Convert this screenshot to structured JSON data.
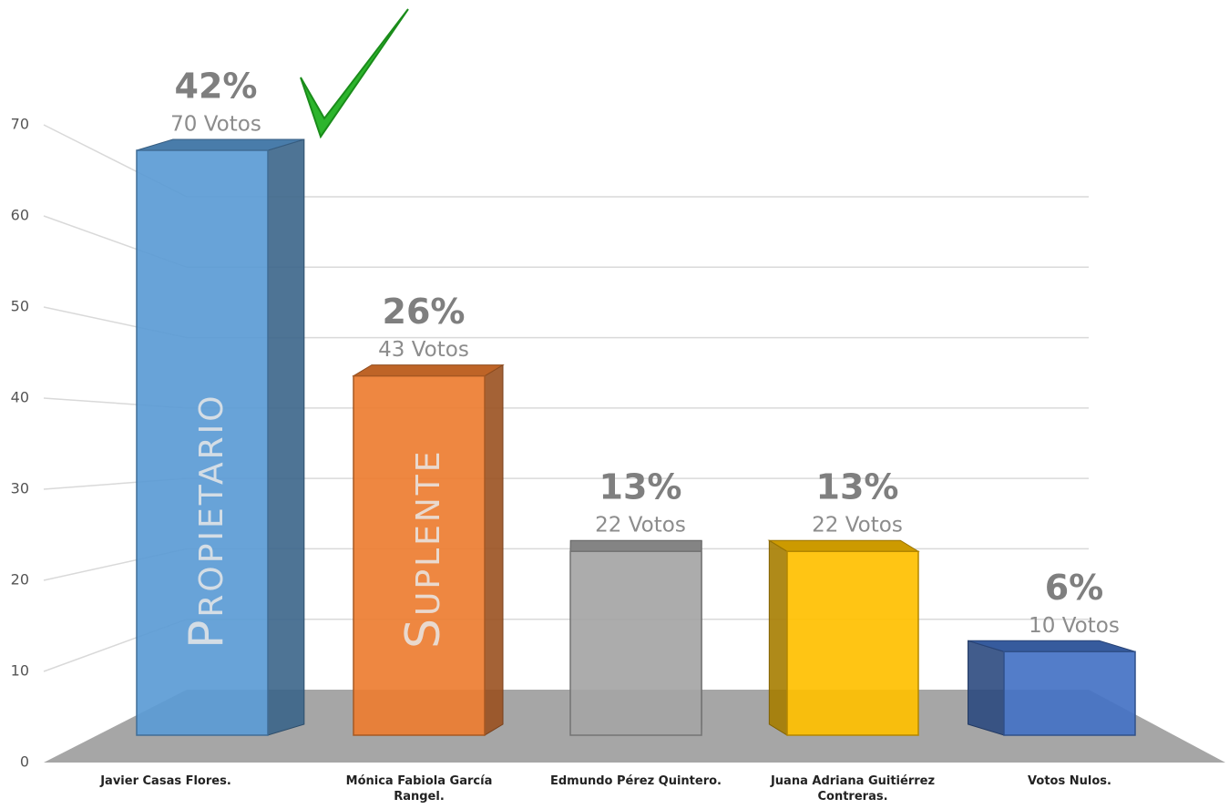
{
  "chart_data": {
    "type": "bar3d",
    "categories": [
      "Javier Casas Flores.",
      "Mónica Fabiola García Rangel.",
      "Edmundo Pérez Quintero.",
      "Juana Adriana Guitiérrez Contreras.",
      "Votos Nulos."
    ],
    "values": [
      70,
      43,
      22,
      22,
      10
    ],
    "value_labels": [
      "70 Votos",
      "43 Votos",
      "22 Votos",
      "22 Votos",
      "10 Votos"
    ],
    "percent_labels": [
      "42%",
      "26%",
      "13%",
      "13%",
      "6%"
    ],
    "colors": [
      "#5b9bd5",
      "#ed7d31",
      "#a5a5a5",
      "#ffc000",
      "#4472c4"
    ],
    "bar_texts": [
      "Propietario",
      "Suplente",
      null,
      null,
      null
    ],
    "ylim": [
      0,
      70
    ],
    "yticks": [
      0,
      10,
      20,
      30,
      40,
      50,
      60,
      70
    ],
    "grid": true
  }
}
